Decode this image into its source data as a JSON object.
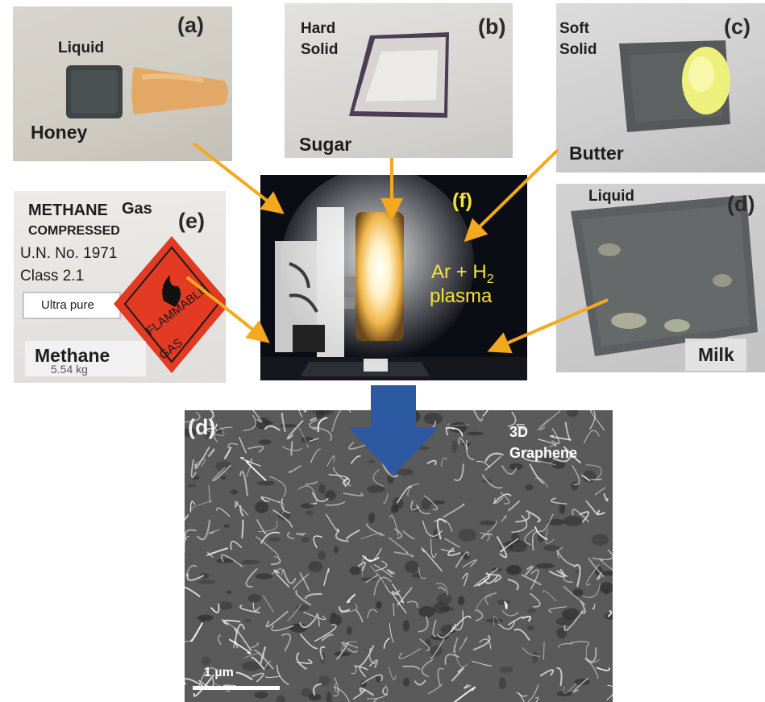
{
  "panels": {
    "a": {
      "letter": "(a)",
      "state": "Liquid",
      "name": "Honey"
    },
    "b": {
      "letter": "(b)",
      "state_line1": "Hard",
      "state_line2": "Solid",
      "name": "Sugar"
    },
    "c": {
      "letter": "(c)",
      "state_line1": "Soft",
      "state_line2": "Solid",
      "name": "Butter"
    },
    "d_top": {
      "letter": "(d)",
      "state": "Liquid",
      "name": "Milk"
    },
    "e": {
      "letter": "(e)",
      "label_methane": "METHANE",
      "state": "Gas",
      "compressed": "COMPRESSED",
      "un_no": "U.N. No. 1971",
      "class": "Class 2.1",
      "purity": "Ultra pure",
      "weight": "5.54 kg",
      "sign_line1": "FLAMMABLE",
      "sign_line2": "GAS",
      "name": "Methane"
    },
    "f": {
      "letter": "(f)",
      "gas_ar": "Ar + H",
      "gas_sub": "2",
      "gas_plasma": "plasma"
    },
    "d_bottom": {
      "letter": "(d)",
      "product_line1": "3D",
      "product_line2": "Graphene",
      "scale": "1 µm"
    }
  },
  "colors": {
    "arrow_orange": "#f4a81f",
    "arrow_blue": "#2b5aa3",
    "plasma_label": "#f7e23a"
  }
}
